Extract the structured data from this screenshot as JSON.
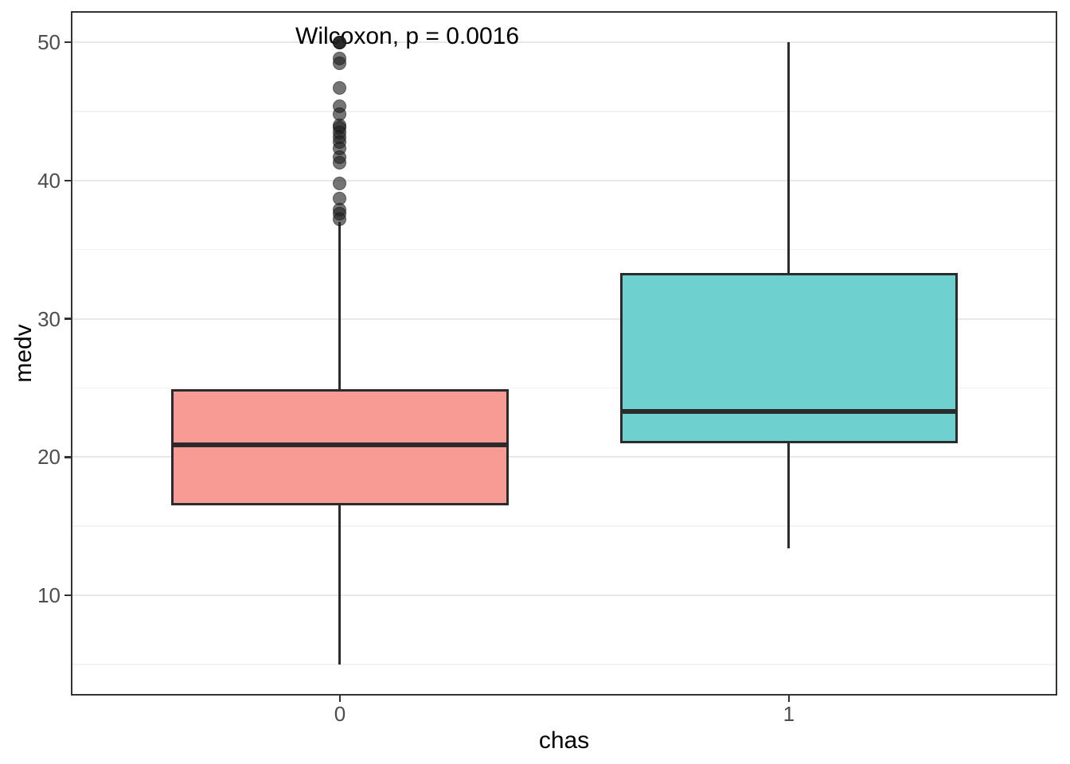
{
  "chart_data": {
    "type": "boxplot",
    "title": "",
    "xlabel": "chas",
    "ylabel": "medv",
    "annotation": "Wilcoxon, p = 0.0016",
    "legend": "none",
    "grid": true,
    "y_axis": {
      "domain": [
        2.75,
        52.25
      ],
      "major_ticks": [
        10,
        20,
        30,
        40,
        50
      ],
      "minor_ticks": [
        5,
        15,
        25,
        35,
        45
      ]
    },
    "x_axis": {
      "categories": [
        "0",
        "1"
      ],
      "center_fractions": [
        0.2728,
        0.7279
      ],
      "box_width_fraction": 0.342
    },
    "series": [
      {
        "category": "0",
        "fill": "#F89B94",
        "stroke": "#2B2B2B",
        "whisker_low": 5.0,
        "q1": 16.6,
        "median": 20.9,
        "q3": 24.8,
        "whisker_high": 37.0,
        "outliers": [
          50,
          50,
          50,
          48.8,
          48.5,
          46.7,
          45.4,
          44.8,
          44.0,
          43.8,
          43.5,
          43.1,
          42.8,
          42.3,
          41.7,
          41.3,
          39.8,
          38.7,
          37.9,
          37.6,
          37.2
        ]
      },
      {
        "category": "1",
        "fill": "#6FD0D0",
        "stroke": "#2B2B2B",
        "whisker_low": 13.4,
        "q1": 21.1,
        "median": 23.3,
        "q3": 33.2,
        "whisker_high": 50.0,
        "outliers": []
      }
    ],
    "colors": {
      "grid_major": "#E8E8E8",
      "grid_minor": "#F2F2F2",
      "panel_border": "#333333",
      "tick_label": "#4D4D4D",
      "axis_title": "#000000",
      "annotation_text": "#000000",
      "outlier_fill": "rgba(30,30,30,0.62)"
    }
  }
}
